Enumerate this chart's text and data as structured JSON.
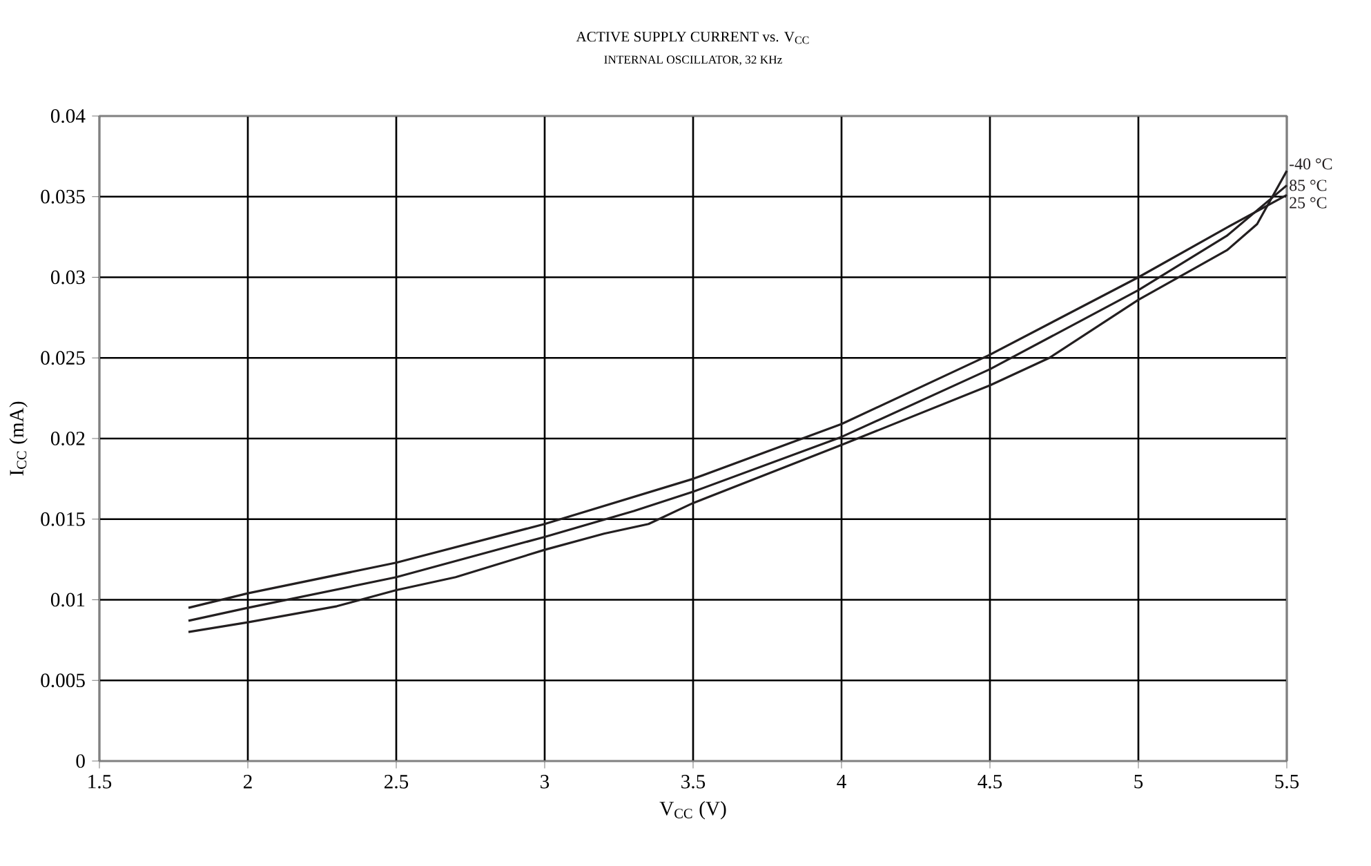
{
  "chart_data": {
    "type": "line",
    "title": "ACTIVE SUPPLY CURRENT vs. V$_{CC}$",
    "subtitle": "INTERNAL OSCILLATOR, 32 KHz",
    "xlabel": "V$_{CC}$ (V)",
    "ylabel": "I$_{CC}$ (mA)",
    "xlim": [
      1.5,
      5.5
    ],
    "ylim": [
      0,
      0.04
    ],
    "xticks": [
      1.5,
      2,
      2.5,
      3,
      3.5,
      4,
      4.5,
      5,
      5.5
    ],
    "yticks": [
      0,
      0.005,
      0.01,
      0.015,
      0.02,
      0.025,
      0.03,
      0.035,
      0.04
    ],
    "grid": true,
    "legend": false,
    "marker": "none",
    "line_style": "solid",
    "series": [
      {
        "name": "-40 °C",
        "color": "#231f20",
        "x": [
          1.8,
          2,
          2.3,
          2.5,
          2.7,
          3,
          3.2,
          3.35,
          3.5,
          4,
          4.5,
          4.7,
          5,
          5.3,
          5.4,
          5.5
        ],
        "values": [
          0.008,
          0.0086,
          0.0096,
          0.0106,
          0.0114,
          0.0131,
          0.0141,
          0.0147,
          0.016,
          0.0196,
          0.0233,
          0.025,
          0.0286,
          0.0317,
          0.0333,
          0.0366
        ]
      },
      {
        "name": "85 °C",
        "color": "#231f20",
        "x": [
          1.8,
          2,
          2.5,
          3,
          3.3,
          3.5,
          4,
          4.5,
          5,
          5.3,
          5.5
        ],
        "values": [
          0.0087,
          0.0095,
          0.0114,
          0.0139,
          0.0155,
          0.0167,
          0.0201,
          0.0243,
          0.0292,
          0.0326,
          0.0357
        ]
      },
      {
        "name": "25 °C",
        "color": "#231f20",
        "x": [
          1.8,
          2,
          2.5,
          3,
          3.5,
          4,
          4.5,
          5,
          5.3,
          5.5
        ],
        "values": [
          0.0095,
          0.0104,
          0.0123,
          0.0147,
          0.0175,
          0.0209,
          0.0252,
          0.03,
          0.0331,
          0.0351
        ]
      }
    ]
  }
}
